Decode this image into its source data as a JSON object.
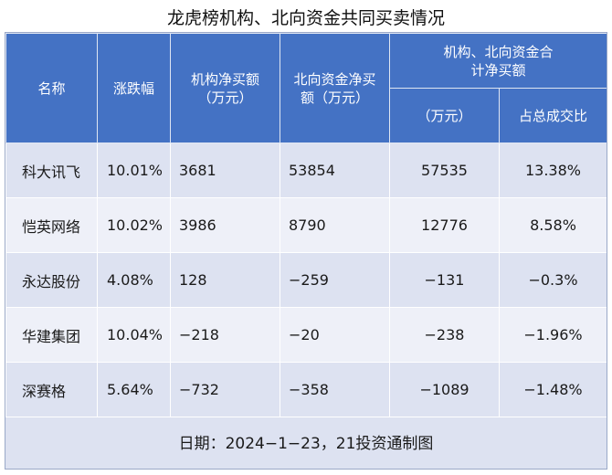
{
  "title": "龙虎榜机构、北向资金共同买卖情况",
  "headers": {
    "name": "名称",
    "change": "涨跌幅",
    "inst_net": "机构净买额（万元）",
    "north_net": "北向资金净买额（万元）",
    "combined_group": "机构、北向资金合计净买额",
    "combined_amount": "（万元）",
    "combined_ratio": "占总成交比"
  },
  "rows": [
    {
      "name": "科大讯飞",
      "change": "10.01%",
      "inst_net": "3681",
      "north_net": "53854",
      "combined": "57535",
      "ratio": "13.38%"
    },
    {
      "name": "恺英网络",
      "change": "10.02%",
      "inst_net": "3986",
      "north_net": "8790",
      "combined": "12776",
      "ratio": "8.58%"
    },
    {
      "name": "永达股份",
      "change": "4.08%",
      "inst_net": "128",
      "north_net": "−259",
      "combined": "−131",
      "ratio": "−0.3%"
    },
    {
      "name": "华建集团",
      "change": "10.04%",
      "inst_net": "−218",
      "north_net": "−20",
      "combined": "−238",
      "ratio": "−1.96%"
    },
    {
      "name": "深赛格",
      "change": "5.64%",
      "inst_net": "−732",
      "north_net": "−358",
      "combined": "−1089",
      "ratio": "−1.48%"
    }
  ],
  "footer": "日期：2024−1−23，21投资通制图",
  "colors": {
    "header_bg": "#4472c4",
    "row_odd": "#dde2f1",
    "row_even": "#eef0f8"
  }
}
